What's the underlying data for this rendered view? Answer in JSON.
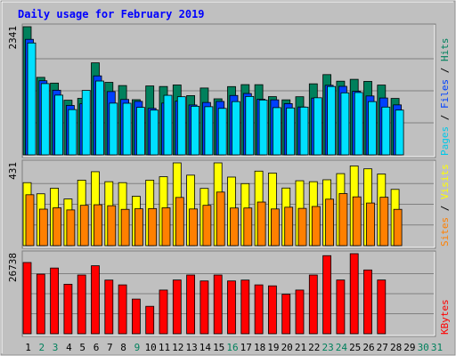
{
  "chart_data": {
    "type": "bar",
    "title": "Daily usage for February 2019",
    "days": [
      "1",
      "2",
      "3",
      "4",
      "5",
      "6",
      "7",
      "8",
      "9",
      "10",
      "11",
      "12",
      "13",
      "14",
      "15",
      "16",
      "17",
      "18",
      "19",
      "20",
      "21",
      "22",
      "23",
      "24",
      "25",
      "26",
      "27",
      "28",
      "29",
      "30",
      "31"
    ],
    "weekend_days": [
      "2",
      "3",
      "9",
      "16",
      "23",
      "24",
      "30",
      "31"
    ],
    "data_days": 28,
    "panels": [
      {
        "name": "hits-files-pages",
        "max_label": "2341",
        "ymax": 2341,
        "legend": [
          {
            "text": "Pages",
            "color": "#00c8e8"
          },
          {
            "text": " / ",
            "color": "#000000"
          },
          {
            "text": "Files",
            "color": "#0040ff"
          },
          {
            "text": " / ",
            "color": "#000000"
          },
          {
            "text": "Hits",
            "color": "#00805c"
          }
        ],
        "series": [
          {
            "name": "Hits",
            "color": "#00805c",
            "values": [
              2341,
              1416,
              1311,
              998,
              1032,
              1681,
              1325,
              1266,
              1008,
              1259,
              1249,
              1277,
              1082,
              1221,
              1024,
              1247,
              1283,
              1282,
              1064,
              1005,
              1062,
              1298,
              1466,
              1346,
              1380,
              1342,
              1275,
              1031
            ]
          },
          {
            "name": "Files",
            "color": "#0040ff",
            "values": [
              2110,
              1354,
              1181,
              903,
              935,
              1443,
              1156,
              1012,
              977,
              849,
              946,
              981,
              911,
              957,
              976,
              1085,
              1121,
              1016,
              1005,
              936,
              875,
              1037,
              1271,
              1252,
              1161,
              1076,
              1039,
              913
            ]
          },
          {
            "name": "Pages",
            "color": "#00e0ff",
            "values": [
              2044,
              1302,
              1091,
              827,
              1177,
              1349,
              945,
              943,
              868,
              818,
              1088,
              1062,
              888,
              880,
              849,
              973,
              1067,
              1002,
              863,
              857,
              872,
              1043,
              1249,
              1133,
              1139,
              973,
              873,
              818
            ]
          }
        ]
      },
      {
        "name": "visits-sites",
        "max_label": "431",
        "ymax": 431,
        "legend": [
          {
            "text": "Sites",
            "color": "#ff8000"
          },
          {
            "text": " / ",
            "color": "#000000"
          },
          {
            "text": "Visits",
            "color": "#ffff00"
          }
        ],
        "series": [
          {
            "name": "Visits",
            "color": "#ffff00",
            "values": [
              328,
              270,
              299,
              243,
              341,
              385,
              333,
              328,
              257,
              341,
              359,
              431,
              367,
              298,
              431,
              357,
              323,
              388,
              378,
              300,
              338,
              333,
              343,
              375,
              415,
              400,
              373,
              293
            ]
          },
          {
            "name": "Sites",
            "color": "#ff8000",
            "values": [
              265,
              190,
              197,
              186,
              210,
              213,
              208,
              189,
              192,
              193,
              197,
              251,
              191,
              210,
              279,
              196,
              196,
              227,
              191,
              200,
              194,
              204,
              242,
              271,
              254,
              222,
              252,
              189
            ]
          }
        ]
      },
      {
        "name": "kbytes",
        "max_label": "26738",
        "ymax": 26738,
        "legend": [
          {
            "text": "KBytes",
            "color": "#ff0000"
          }
        ],
        "series": [
          {
            "name": "KBytes",
            "color": "#ff0000",
            "values": [
              23785,
              19897,
              21937,
              16531,
              19604,
              22701,
              17917,
              16313,
              11565,
              9157,
              14584,
              17947,
              19604,
              17628,
              19604,
              17628,
              17917,
              16313,
              15989,
              13192,
              14584,
              19604,
              26071,
              17947,
              26738,
              21295,
              17947,
              0
            ]
          }
        ]
      }
    ],
    "colors": {
      "plot_bg": "#c0c0c0",
      "frame_bg": "#c0c0c0",
      "title": "#0000ff",
      "weekday_label": "#000000",
      "weekend_label": "#00805c",
      "grid": "#808080"
    }
  }
}
